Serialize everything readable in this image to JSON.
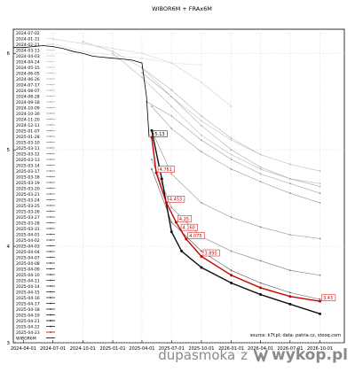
{
  "chart_data": {
    "type": "line",
    "title": "WIBOR6M + FRAx6M",
    "source_note": "source: k7f.pl; data: patria.cz, stooq.com",
    "x_ticks": [
      "2024-04-01",
      "2024-07-01",
      "2024-10-01",
      "2025-01-01",
      "2025-04-01",
      "2025-07-01",
      "2025-10-01",
      "2026-01-01",
      "2026-04-01",
      "2026-07-01",
      "2026-10-01"
    ],
    "y_ticks": [
      3,
      4,
      5,
      6
    ],
    "ylim": [
      3,
      6.25
    ],
    "xlim": [
      "2024-03-01",
      "2026-12-15"
    ],
    "grid": true,
    "legend_position": "top-left",
    "legend_entries": [
      "2024-01-31",
      "2024-02-21",
      "2024-03-13",
      "2024-04-03",
      "2024-04-24",
      "2024-05-15",
      "2024-06-05",
      "2024-06-26",
      "2024-07-17",
      "2024-08-07",
      "2024-08-28",
      "2024-09-18",
      "2024-10-09",
      "2024-10-30",
      "2024-11-20",
      "2024-12-11",
      "2025-01-07",
      "2025-01-28",
      "2025-03-10",
      "2025-03-11",
      "2025-03-12",
      "2025-03-13",
      "2025-03-14",
      "2025-03-17",
      "2025-03-18",
      "2025-03-19",
      "2025-03-20",
      "2025-03-21",
      "2025-03-24",
      "2025-03-25",
      "2025-03-26",
      "2025-03-27",
      "2025-03-28",
      "2025-03-31",
      "2025-04-01",
      "2025-04-02",
      "2025-04-03",
      "2025-04-04",
      "2025-04-07",
      "2025-04-08",
      "2025-04-09",
      "2025-04-10",
      "2025-04-11",
      "2025-04-14",
      "2025-04-15",
      "2025-04-16",
      "2025-04-17",
      "2025-04-18",
      "2025-04-19",
      "2025-04-21",
      "2025-04-22",
      "2025-04-23",
      "WIBOR6M"
    ],
    "legend_header": "2024-07-02",
    "series": [
      {
        "name": "2024-01-31",
        "color": "#e0e0e0",
        "x": [
          "2024-07-01",
          "2024-10-01",
          "2025-01-01",
          "2025-04-01",
          "2025-07-01",
          "2025-10-01"
        ],
        "y": [
          6.1,
          6.02,
          5.98,
          5.95,
          5.9,
          5.88
        ]
      },
      {
        "name": "2024-04-24",
        "color": "#d0d0d0",
        "x": [
          "2024-07-01",
          "2024-10-01",
          "2025-01-01",
          "2025-04-01",
          "2025-07-01",
          "2025-10-01",
          "2026-01-01"
        ],
        "y": [
          6.15,
          6.1,
          6.05,
          6.0,
          5.9,
          5.7,
          5.45
        ]
      },
      {
        "name": "2024-08-07",
        "color": "#c4c4c4",
        "x": [
          "2024-10-01",
          "2025-01-01",
          "2025-04-01",
          "2025-07-01",
          "2025-10-01",
          "2026-01-01",
          "2026-04-01"
        ],
        "y": [
          6.12,
          6.02,
          5.85,
          5.55,
          5.3,
          5.1,
          4.95
        ]
      },
      {
        "name": "2024-10-30",
        "color": "#bcbcbc",
        "x": [
          "2025-01-01",
          "2025-04-01",
          "2025-07-01",
          "2025-10-01",
          "2026-01-01",
          "2026-04-01",
          "2026-07-01",
          "2026-10-01"
        ],
        "y": [
          6.0,
          5.75,
          5.45,
          5.15,
          4.95,
          4.8,
          4.7,
          4.65
        ]
      },
      {
        "name": "2024-12-11",
        "color": "#b4b4b4",
        "x": [
          "2025-04-01",
          "2025-07-01",
          "2025-10-01",
          "2026-01-01",
          "2026-04-01",
          "2026-07-01",
          "2026-10-01"
        ],
        "y": [
          5.85,
          5.62,
          5.35,
          5.12,
          4.95,
          4.85,
          4.78
        ]
      },
      {
        "name": "2025-01-28",
        "color": "#aaaaaa",
        "x": [
          "2025-04-01",
          "2025-07-01",
          "2025-10-01",
          "2026-01-01",
          "2026-04-01",
          "2026-07-01",
          "2026-10-01"
        ],
        "y": [
          5.8,
          5.55,
          5.25,
          5.0,
          4.82,
          4.7,
          4.62
        ]
      },
      {
        "name": "2025-03-10",
        "color": "#a0a0a0",
        "x": [
          "2025-04-15",
          "2025-07-01",
          "2025-10-01",
          "2026-01-01",
          "2026-04-01",
          "2026-07-01",
          "2026-10-01"
        ],
        "y": [
          5.5,
          5.35,
          5.1,
          4.9,
          4.75,
          4.65,
          4.55
        ]
      },
      {
        "name": "2025-03-20",
        "color": "#999999",
        "x": [
          "2025-05-01",
          "2025-07-01",
          "2025-10-01",
          "2026-01-01",
          "2026-04-01",
          "2026-07-01",
          "2026-10-01"
        ],
        "y": [
          5.45,
          5.22,
          4.98,
          4.8,
          4.67,
          4.55,
          4.45
        ]
      },
      {
        "name": "2025-04-02",
        "color": "#8c8c8c",
        "x": [
          "2025-05-01",
          "2025-07-01",
          "2025-10-01",
          "2026-01-01",
          "2026-04-01",
          "2026-07-01",
          "2026-10-01"
        ],
        "y": [
          5.2,
          4.75,
          4.45,
          4.3,
          4.2,
          4.12,
          4.08
        ]
      },
      {
        "name": "2025-04-10",
        "color": "#7a7a7a",
        "x": [
          "2025-05-01",
          "2025-07-01",
          "2025-10-01",
          "2026-01-01",
          "2026-04-01",
          "2026-07-01",
          "2026-10-01"
        ],
        "y": [
          4.9,
          4.4,
          4.1,
          3.95,
          3.85,
          3.75,
          3.7
        ]
      },
      {
        "name": "2025-04-17",
        "color": "#555555",
        "x": [
          "2025-05-01",
          "2025-07-01",
          "2025-10-01",
          "2026-01-01",
          "2026-04-01",
          "2026-07-01",
          "2026-10-01"
        ],
        "y": [
          4.8,
          4.25,
          3.95,
          3.75,
          3.62,
          3.52,
          3.45
        ]
      },
      {
        "name": "2025-04-21",
        "color": "#111111",
        "x": [
          "2025-05-01",
          "2025-06-01",
          "2025-07-01",
          "2025-08-01",
          "2025-10-01",
          "2026-01-01",
          "2026-04-01",
          "2026-07-01",
          "2026-10-01"
        ],
        "y": [
          5.2,
          4.7,
          4.15,
          3.95,
          3.78,
          3.62,
          3.5,
          3.4,
          3.3
        ]
      },
      {
        "name": "2025-04-23",
        "color": "#cc0000",
        "x": [
          "2025-05-01",
          "2025-05-15",
          "2025-06-15",
          "2025-07-15",
          "2025-08-15",
          "2025-10-01",
          "2026-01-01",
          "2026-04-01",
          "2026-07-01",
          "2026-10-01"
        ],
        "y": [
          5.13,
          4.761,
          4.453,
          4.25,
          4.075,
          3.895,
          3.7,
          3.57,
          3.48,
          3.43
        ]
      }
    ],
    "wibor6m": {
      "name": "WIBOR6M",
      "color": "#000000",
      "x": [
        "2024-03-01",
        "2024-04-01",
        "2024-05-01",
        "2024-06-01",
        "2024-07-01",
        "2024-08-01",
        "2024-09-01",
        "2024-10-01",
        "2024-11-01",
        "2024-12-01",
        "2025-01-01",
        "2025-02-01",
        "2025-03-01",
        "2025-04-01",
        "2025-04-15",
        "2025-04-23"
      ],
      "y": [
        6.06,
        6.06,
        6.07,
        6.08,
        6.07,
        6.05,
        6.02,
        6.0,
        5.97,
        5.96,
        5.95,
        5.94,
        5.93,
        5.9,
        5.55,
        5.13
      ]
    },
    "annotations": [
      {
        "label": "5.13",
        "x": "2025-05-01",
        "y": 5.13
      },
      {
        "label": "4.761",
        "x": "2025-05-15",
        "y": 4.761
      },
      {
        "label": "4.453",
        "x": "2025-06-15",
        "y": 4.453
      },
      {
        "label": "4.25",
        "x": "2025-07-15",
        "y": 4.25
      },
      {
        "label": "4.160",
        "x": "2025-07-25",
        "y": 4.16
      },
      {
        "label": "4.075",
        "x": "2025-08-15",
        "y": 4.075
      },
      {
        "label": "3.895",
        "x": "2025-10-01",
        "y": 3.895
      },
      {
        "label": "3.43",
        "x": "2026-10-01",
        "y": 3.43
      }
    ]
  },
  "watermark": {
    "user": "dupasmoka",
    "connector": "z",
    "brand": "wykop.pl"
  }
}
